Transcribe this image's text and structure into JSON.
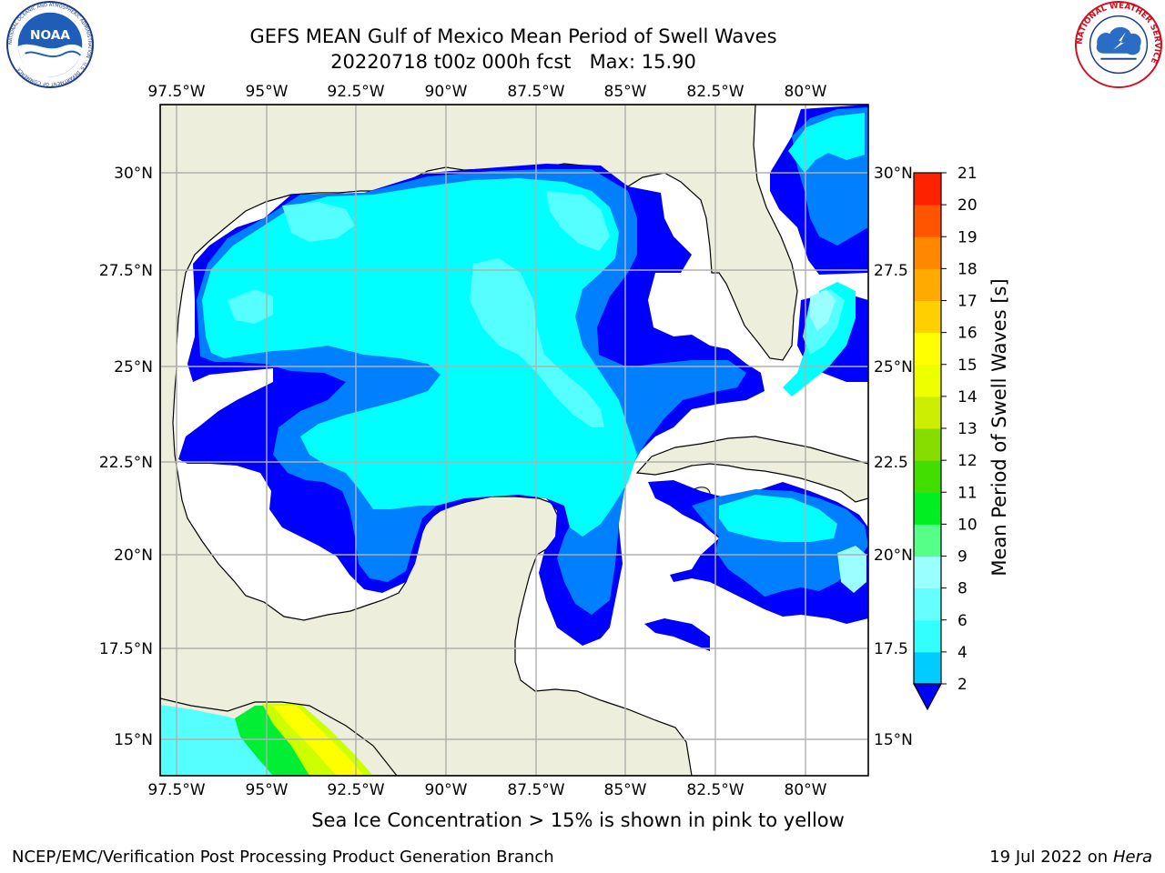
{
  "title": {
    "line1": "GEFS MEAN Gulf of Mexico Mean Period of Swell Waves",
    "line2": "20220718 t00z 000h fcst   Max: 15.90"
  },
  "map": {
    "top_lon_labels": [
      "97.5°W",
      "95°W",
      "92.5°W",
      "90°W",
      "87.5°W",
      "85°W",
      "82.5°W",
      "80°W"
    ],
    "bottom_lon_labels": [
      "97.5°W",
      "95°W",
      "92.5°W",
      "90°W",
      "87.5°W",
      "85°W",
      "82.5°W",
      "80°W"
    ],
    "left_lat_labels": [
      "30°N",
      "27.5°N",
      "25°N",
      "22.5°N",
      "20°N",
      "17.5°N",
      "15°N"
    ],
    "right_lat_labels": [
      "30°N",
      "27.5",
      "25°N",
      "22.5",
      "20°N",
      "17.5",
      "15°N"
    ],
    "colors": {
      "land": "#eeeedc",
      "water_none": "#ffffff",
      "dark_blue": "#0000ff",
      "mid_blue": "#0080ff",
      "cyan": "#00ffff",
      "light_cyan": "#55ffff",
      "pale_cyan": "#9cffff",
      "green": "#00dd00",
      "yellow_green": "#ddff00",
      "yellow": "#ffff00"
    }
  },
  "colorbar": {
    "title": "Mean Period of Swell Waves [s]",
    "ticks": [
      "2",
      "4",
      "6",
      "8",
      "9",
      "10",
      "11",
      "12",
      "13",
      "14",
      "15",
      "16",
      "17",
      "18",
      "19",
      "20",
      "21"
    ],
    "colors": [
      "#0066ff",
      "#00ccff",
      "#33ffff",
      "#66ffff",
      "#99ffff",
      "#55ff88",
      "#00ee22",
      "#44dd00",
      "#88dd00",
      "#ccee00",
      "#eeff00",
      "#ffff00",
      "#ffd000",
      "#ffaa00",
      "#ff8800",
      "#ff5500",
      "#ff2200",
      "#ff0000"
    ]
  },
  "caption": "Sea Ice Concentration > 15% is shown in pink to yellow",
  "footer": {
    "left": "NCEP/EMC/Verification Post Processing Product Generation Branch",
    "right_date": "19 Jul 2022 on ",
    "right_host": "Hera"
  },
  "logos": {
    "noaa_text": "NOAA",
    "noaa_ring": "NATIONAL OCEANIC AND ATMOSPHERIC ADMINISTRATION · U.S. DEPARTMENT OF COMMERCE",
    "nws_ring": "NATIONAL WEATHER SERVICE"
  }
}
